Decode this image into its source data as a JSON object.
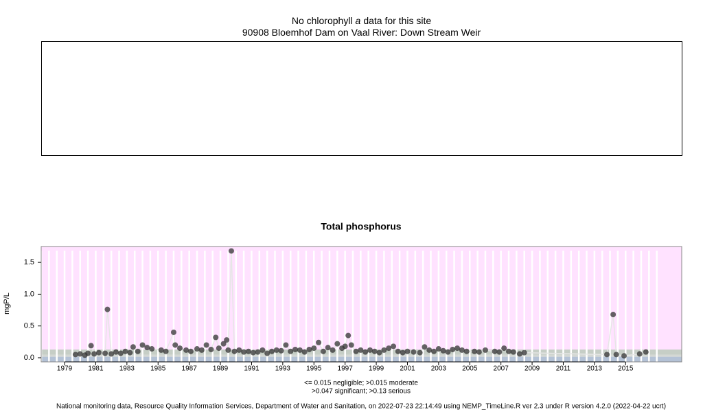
{
  "header": {
    "message": [
      "No chlorophyll",
      "a",
      "data for this site"
    ],
    "site": "90908 Bloemhof Dam on Vaal River: Down Stream Weir"
  },
  "chart_data": {
    "type": "scatter",
    "title": "Total phosphorus",
    "y_label": "mgP/L",
    "xlim": [
      1977.5,
      2018.6
    ],
    "ylim": [
      -0.065,
      1.75
    ],
    "xticks": [
      1979,
      1981,
      1983,
      1985,
      1987,
      1989,
      1991,
      1993,
      1995,
      1997,
      1999,
      2001,
      2003,
      2005,
      2007,
      2009,
      2011,
      2013,
      2015
    ],
    "yticks": [
      {
        "value": 0,
        "label": "0.0"
      },
      0.5,
      {
        "value": 1,
        "label": "1.0"
      },
      1.5
    ],
    "thresholds": [
      0.015,
      0.047,
      0.13
    ],
    "band_colors": [
      "#b4c2d6",
      "#d4d8d4",
      "#c6cec6",
      "#ffe2ff"
    ],
    "color": "#333333",
    "line_color": "#e6e6e6",
    "notes": [
      "<= 0.015 negligible; >0.015 moderate",
      ">0.047 significant; >0.13 serious"
    ],
    "x": [
      1979.7,
      1980.0,
      1980.3,
      1980.5,
      1980.7,
      1980.9,
      1981.2,
      1981.6,
      1981.75,
      1982.0,
      1982.3,
      1982.6,
      1982.9,
      1983.2,
      1983.4,
      1983.7,
      1984.0,
      1984.3,
      1984.6,
      1985.2,
      1985.5,
      1986.0,
      1986.1,
      1986.4,
      1986.8,
      1987.1,
      1987.5,
      1987.8,
      1988.1,
      1988.4,
      1988.7,
      1988.9,
      1989.2,
      1989.4,
      1989.5,
      1989.7,
      1989.9,
      1990.2,
      1990.5,
      1990.8,
      1991.1,
      1991.4,
      1991.7,
      1992.0,
      1992.3,
      1992.6,
      1992.9,
      1993.2,
      1993.5,
      1993.8,
      1994.1,
      1994.4,
      1994.7,
      1995.0,
      1995.3,
      1995.6,
      1995.9,
      1996.2,
      1996.5,
      1996.8,
      1997.0,
      1997.2,
      1997.4,
      1997.7,
      1998.0,
      1998.3,
      1998.6,
      1998.9,
      1999.2,
      1999.5,
      1999.8,
      2000.1,
      2000.4,
      2000.7,
      2001.0,
      2001.4,
      2001.8,
      2002.1,
      2002.4,
      2002.7,
      2003.0,
      2003.3,
      2003.6,
      2003.9,
      2004.2,
      2004.5,
      2004.8,
      2005.3,
      2005.6,
      2006.0,
      2006.6,
      2006.9,
      2007.2,
      2007.5,
      2007.8,
      2008.2,
      2008.5,
      2013.8,
      2014.2,
      2014.4,
      2014.9,
      2015.9,
      2016.3
    ],
    "values": [
      0.05,
      0.06,
      0.04,
      0.07,
      0.19,
      0.06,
      0.08,
      0.07,
      0.76,
      0.06,
      0.09,
      0.07,
      0.1,
      0.08,
      0.17,
      0.1,
      0.2,
      0.16,
      0.14,
      0.12,
      0.1,
      0.4,
      0.2,
      0.15,
      0.12,
      0.1,
      0.14,
      0.12,
      0.2,
      0.13,
      0.32,
      0.15,
      0.22,
      0.28,
      0.12,
      1.68,
      0.1,
      0.12,
      0.09,
      0.1,
      0.08,
      0.09,
      0.12,
      0.07,
      0.1,
      0.12,
      0.11,
      0.2,
      0.1,
      0.13,
      0.12,
      0.09,
      0.13,
      0.15,
      0.24,
      0.1,
      0.16,
      0.12,
      0.22,
      0.15,
      0.18,
      0.35,
      0.2,
      0.1,
      0.12,
      0.09,
      0.12,
      0.1,
      0.08,
      0.12,
      0.15,
      0.18,
      0.1,
      0.08,
      0.1,
      0.09,
      0.08,
      0.17,
      0.12,
      0.1,
      0.14,
      0.11,
      0.09,
      0.13,
      0.15,
      0.12,
      0.1,
      0.1,
      0.09,
      0.12,
      0.1,
      0.09,
      0.15,
      0.1,
      0.09,
      0.06,
      0.08,
      0.05,
      0.68,
      0.05,
      0.03,
      0.06,
      0.09
    ]
  },
  "footer": "National monitoring data, Resource Quality Information Services, Department of Water and Sanitation, on 2022-07-23 22:14:49 using NEMP_TimeLine.R ver 2.3 under R version 4.2.0 (2022-04-22 ucrt)"
}
